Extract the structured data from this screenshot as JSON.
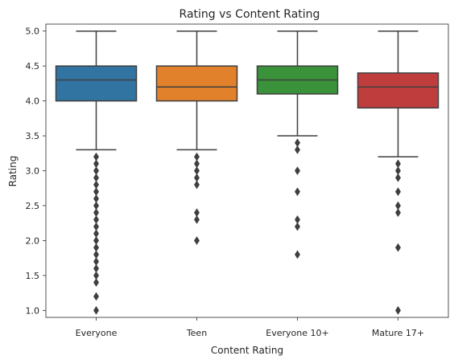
{
  "chart_data": {
    "type": "box",
    "title": "Rating vs Content Rating",
    "xlabel": "Content Rating",
    "ylabel": "Rating",
    "ylim": [
      0.9,
      5.1
    ],
    "yticks": [
      "1.0",
      "1.5",
      "2.0",
      "2.5",
      "3.0",
      "3.5",
      "4.0",
      "4.5",
      "5.0"
    ],
    "grid": false,
    "categories": [
      "Everyone",
      "Teen",
      "Everyone 10+",
      "Mature 17+"
    ],
    "colors": [
      "#3274a1",
      "#e1812c",
      "#3a923a",
      "#c03d3e"
    ],
    "boxes": [
      {
        "category": "Everyone",
        "whisker_low": 3.3,
        "q1": 4.0,
        "median": 4.3,
        "q3": 4.5,
        "whisker_high": 5.0,
        "outliers": [
          3.2,
          3.1,
          3.0,
          2.9,
          2.8,
          2.7,
          2.6,
          2.5,
          2.4,
          2.3,
          2.2,
          2.1,
          2.0,
          1.9,
          1.8,
          1.7,
          1.6,
          1.5,
          1.4,
          1.2,
          1.0
        ]
      },
      {
        "category": "Teen",
        "whisker_low": 3.3,
        "q1": 4.0,
        "median": 4.2,
        "q3": 4.5,
        "whisker_high": 5.0,
        "outliers": [
          3.2,
          3.1,
          3.0,
          2.9,
          2.8,
          2.4,
          2.3,
          2.0
        ]
      },
      {
        "category": "Everyone 10+",
        "whisker_low": 3.5,
        "q1": 4.1,
        "median": 4.3,
        "q3": 4.5,
        "whisker_high": 5.0,
        "outliers": [
          3.4,
          3.3,
          3.0,
          2.7,
          2.3,
          2.2,
          1.8
        ]
      },
      {
        "category": "Mature 17+",
        "whisker_low": 3.2,
        "q1": 3.9,
        "median": 4.2,
        "q3": 4.4,
        "whisker_high": 5.0,
        "outliers": [
          3.1,
          3.0,
          2.9,
          2.7,
          2.5,
          2.4,
          1.9,
          1.0
        ]
      }
    ]
  }
}
